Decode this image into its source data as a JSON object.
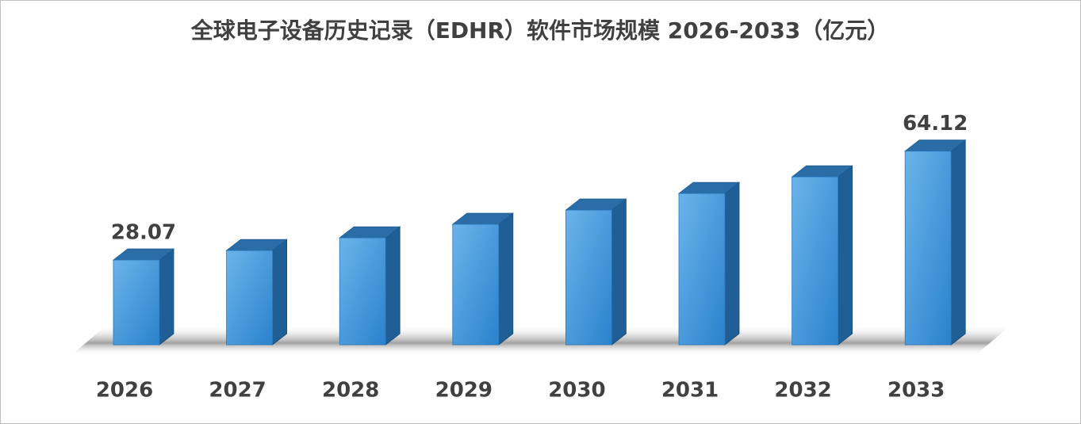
{
  "chart_data": {
    "type": "bar3d",
    "title": "全球电子设备历史记录（EDHR）软件市场规模 2026-2033（亿元）",
    "categories": [
      "2026",
      "2027",
      "2028",
      "2029",
      "2030",
      "2031",
      "2032",
      "2033"
    ],
    "values": [
      28.07,
      31.2,
      35.4,
      39.9,
      44.6,
      50.1,
      55.6,
      64.12
    ],
    "color": "#3f97dc",
    "data_labels": "ends"
  }
}
